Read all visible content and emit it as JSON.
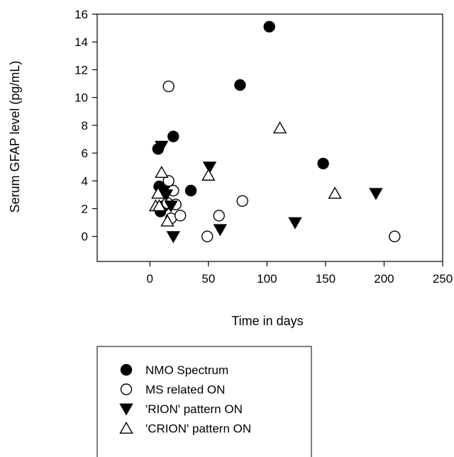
{
  "chart_data": {
    "type": "scatter",
    "title": "",
    "xlabel": "Time in days",
    "ylabel": "Serum GFAP level (pg/mL)",
    "xlim": [
      -45,
      250
    ],
    "ylim": [
      -1.8,
      16
    ],
    "xticks": [
      0,
      50,
      100,
      150,
      200,
      250
    ],
    "yticks": [
      0,
      2,
      4,
      6,
      8,
      10,
      12,
      14,
      16
    ],
    "grid": false,
    "legend_position": "bottom",
    "series": [
      {
        "name": "NMO Spectrum",
        "marker": "filled-circle",
        "points": [
          [
            7,
            6.3
          ],
          [
            8,
            3.6
          ],
          [
            9,
            1.8
          ],
          [
            12,
            2.2
          ],
          [
            14,
            3.5
          ],
          [
            20,
            7.2
          ],
          [
            35,
            3.3
          ],
          [
            77,
            10.9
          ],
          [
            102,
            15.1
          ],
          [
            148,
            5.25
          ]
        ]
      },
      {
        "name": "MS related ON",
        "marker": "open-circle",
        "points": [
          [
            16,
            10.8
          ],
          [
            16,
            4.0
          ],
          [
            15,
            2.4
          ],
          [
            18,
            1.3
          ],
          [
            20,
            3.3
          ],
          [
            22,
            2.3
          ],
          [
            26,
            1.5
          ],
          [
            49,
            0.0
          ],
          [
            59,
            1.5
          ],
          [
            79,
            2.55
          ],
          [
            209,
            0.0
          ]
        ]
      },
      {
        "name": "'RION' pattern ON",
        "marker": "filled-triangle-down",
        "points": [
          [
            10,
            6.5
          ],
          [
            14,
            3.0
          ],
          [
            18,
            2.2
          ],
          [
            20,
            0.0
          ],
          [
            51,
            5.0
          ],
          [
            60,
            0.5
          ],
          [
            124,
            1.0
          ],
          [
            193,
            3.1
          ]
        ]
      },
      {
        "name": "'CRION' pattern ON",
        "marker": "open-triangle-up",
        "points": [
          [
            10,
            4.6
          ],
          [
            7,
            3.1
          ],
          [
            5,
            2.2
          ],
          [
            8,
            2.2
          ],
          [
            15,
            1.1
          ],
          [
            50,
            4.4
          ],
          [
            111,
            7.8
          ],
          [
            158,
            3.1
          ]
        ]
      }
    ]
  }
}
